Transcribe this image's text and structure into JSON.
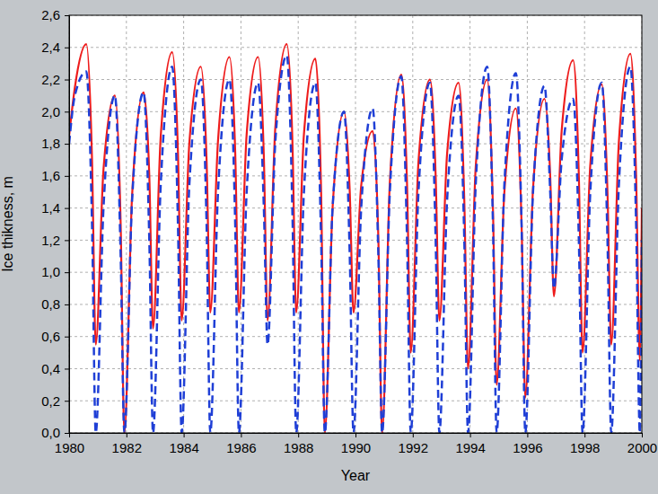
{
  "chart_data": {
    "type": "line",
    "x_label": "Year",
    "y_label": "Ice thikness, m",
    "x": [
      1980.0,
      1980.2,
      1980.6,
      1980.8,
      1980.93,
      1981.2,
      1981.6,
      1981.8,
      1981.93,
      1982.2,
      1982.6,
      1982.8,
      1982.93,
      1983.2,
      1983.6,
      1983.8,
      1983.93,
      1984.2,
      1984.6,
      1984.8,
      1984.93,
      1985.2,
      1985.6,
      1985.8,
      1985.93,
      1986.2,
      1986.6,
      1986.8,
      1986.93,
      1987.2,
      1987.6,
      1987.8,
      1987.93,
      1988.2,
      1988.6,
      1988.8,
      1988.93,
      1989.2,
      1989.6,
      1989.8,
      1989.93,
      1990.2,
      1990.6,
      1990.8,
      1990.93,
      1991.2,
      1991.6,
      1991.8,
      1991.93,
      1992.2,
      1992.6,
      1992.8,
      1992.93,
      1993.2,
      1993.6,
      1993.8,
      1993.93,
      1994.2,
      1994.6,
      1994.8,
      1994.93,
      1995.2,
      1995.6,
      1995.8,
      1995.93,
      1996.2,
      1996.6,
      1996.8,
      1996.93,
      1997.2,
      1997.6,
      1997.8,
      1997.93,
      1998.2,
      1998.6,
      1998.8,
      1998.93,
      1999.2,
      1999.6,
      1999.8,
      1999.93,
      2000.0
    ],
    "series": [
      {
        "color": "#ee1c1c",
        "line_style": "solid",
        "values": [
          1.85,
          2.15,
          2.42,
          1.7,
          0.55,
          1.64,
          2.1,
          1.3,
          0.0,
          1.48,
          2.12,
          1.6,
          0.65,
          1.85,
          2.37,
          1.75,
          0.7,
          1.81,
          2.28,
          1.7,
          0.75,
          1.82,
          2.34,
          1.75,
          0.75,
          1.86,
          2.34,
          1.72,
          0.7,
          1.9,
          2.42,
          1.8,
          0.75,
          1.86,
          2.33,
          1.5,
          0.0,
          1.4,
          2.0,
          1.5,
          0.75,
          1.54,
          1.88,
          1.2,
          0.0,
          1.56,
          2.23,
          1.55,
          0.5,
          1.69,
          2.2,
          1.6,
          0.7,
          1.74,
          2.18,
          1.45,
          0.4,
          1.66,
          2.2,
          1.4,
          0.3,
          1.5,
          2.02,
          1.3,
          0.22,
          1.52,
          2.08,
          1.6,
          0.85,
          1.88,
          2.32,
          1.6,
          0.5,
          1.67,
          2.17,
          1.5,
          0.55,
          1.82,
          2.36,
          1.6,
          0.45,
          1.4
        ]
      },
      {
        "color": "#1f3fd6",
        "line_style": "dashed",
        "values": [
          1.8,
          2.1,
          2.25,
          1.3,
          0.0,
          1.4,
          2.1,
          1.1,
          0.0,
          1.45,
          2.12,
          1.2,
          0.0,
          1.55,
          2.28,
          1.3,
          0.0,
          1.55,
          2.2,
          1.3,
          0.0,
          1.5,
          2.2,
          1.3,
          0.0,
          1.5,
          2.18,
          1.4,
          0.55,
          1.81,
          2.35,
          1.35,
          0.0,
          1.5,
          2.18,
          1.2,
          0.0,
          1.4,
          2.0,
          1.1,
          0.0,
          1.4,
          2.02,
          1.1,
          0.0,
          1.5,
          2.22,
          1.2,
          0.0,
          1.5,
          2.18,
          1.2,
          0.0,
          1.45,
          2.1,
          1.2,
          0.0,
          1.55,
          2.28,
          1.3,
          0.0,
          1.55,
          2.24,
          1.3,
          0.0,
          1.5,
          2.16,
          1.5,
          0.9,
          1.7,
          2.08,
          1.2,
          0.0,
          1.5,
          2.18,
          1.2,
          0.0,
          1.55,
          2.28,
          1.3,
          0.0,
          1.2
        ]
      }
    ],
    "xlim": [
      1980,
      2000
    ],
    "xticks": [
      1980,
      1982,
      1984,
      1986,
      1988,
      1990,
      1992,
      1994,
      1996,
      1998,
      2000
    ],
    "ylim": [
      0,
      2.6
    ],
    "yticks": [
      {
        "value": 0,
        "label": "0,0"
      },
      {
        "value": 0.2,
        "label": "0,2"
      },
      {
        "value": 0.4,
        "label": "0,4"
      },
      {
        "value": 0.6,
        "label": "0,6"
      },
      {
        "value": 0.8,
        "label": "0,8"
      },
      {
        "value": 1.0,
        "label": "1,0"
      },
      {
        "value": 1.2,
        "label": "1,2"
      },
      {
        "value": 1.4,
        "label": "1,4"
      },
      {
        "value": 1.6,
        "label": "1,6"
      },
      {
        "value": 1.8,
        "label": "1,8"
      },
      {
        "value": 2.0,
        "label": "2,0"
      },
      {
        "value": 2.2,
        "label": "2,2"
      },
      {
        "value": 2.4,
        "label": "2,4"
      },
      {
        "value": 2.6,
        "label": "2,6"
      }
    ],
    "grid": true
  }
}
